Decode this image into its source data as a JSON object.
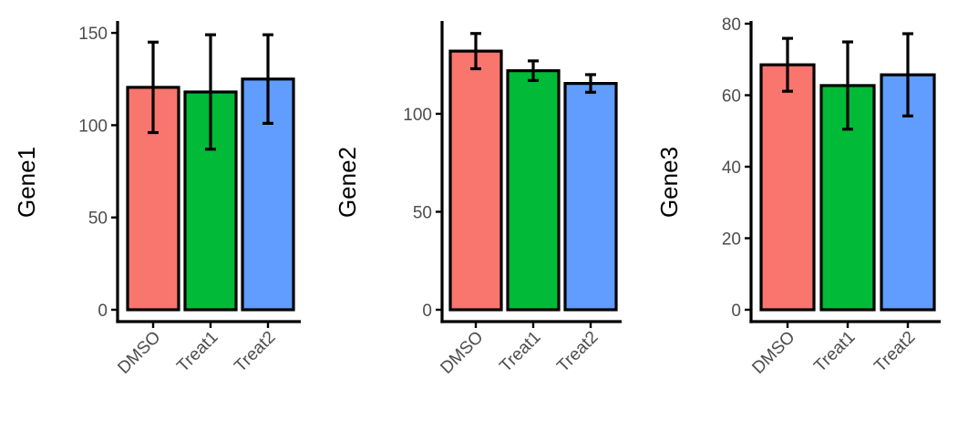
{
  "chart_data": [
    {
      "type": "bar",
      "title": "",
      "xlabel": "",
      "ylabel": "Gene1",
      "categories": [
        "DMSO",
        "Treat1",
        "Treat2"
      ],
      "values": [
        120.5,
        118,
        125
      ],
      "error": [
        24.5,
        31,
        24
      ],
      "ylim": [
        0,
        155
      ],
      "yticks": [
        0,
        50,
        100,
        150
      ],
      "colors": [
        "#F8766D",
        "#00BA38",
        "#619CFF"
      ]
    },
    {
      "type": "bar",
      "title": "",
      "xlabel": "",
      "ylabel": "Gene2",
      "categories": [
        "DMSO",
        "Treat1",
        "Treat2"
      ],
      "values": [
        132,
        122,
        115.5
      ],
      "error": [
        9,
        5,
        4.5
      ],
      "ylim": [
        0,
        146
      ],
      "yticks": [
        0,
        50,
        100
      ],
      "colors": [
        "#F8766D",
        "#00BA38",
        "#619CFF"
      ]
    },
    {
      "type": "bar",
      "title": "",
      "xlabel": "",
      "ylabel": "Gene3",
      "categories": [
        "DMSO",
        "Treat1",
        "Treat2"
      ],
      "values": [
        68.5,
        62.7,
        65.7
      ],
      "error": [
        7.4,
        12.2,
        11.5
      ],
      "ylim": [
        0,
        80
      ],
      "yticks": [
        0,
        20,
        40,
        60,
        80
      ],
      "colors": [
        "#F8766D",
        "#00BA38",
        "#619CFF"
      ]
    }
  ]
}
